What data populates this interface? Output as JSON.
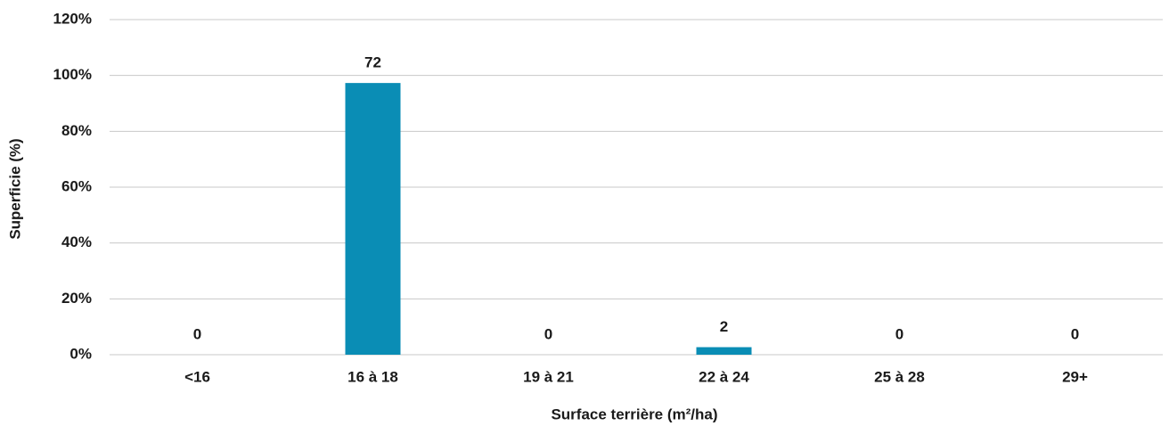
{
  "chart_data": {
    "type": "bar",
    "x_label": "Surface terrière (m²/ha)",
    "y_label": "Superficie (%)",
    "categories": [
      "<16",
      "16 à 18",
      "19 à 21",
      "22 à 24",
      "25 à 28",
      "29+"
    ],
    "values": [
      0,
      97.3,
      0,
      2.7,
      0,
      0
    ],
    "counts": [
      0,
      72,
      0,
      2,
      0,
      0
    ],
    "color": "#0a8db5",
    "ylim": [
      0,
      120
    ],
    "yticks": [
      {
        "value": 0,
        "label": "0%"
      },
      {
        "value": 20,
        "label": "20%"
      },
      {
        "value": 40,
        "label": "40%"
      },
      {
        "value": 60,
        "label": "60%"
      },
      {
        "value": 80,
        "label": "80%"
      },
      {
        "value": 100,
        "label": "100%"
      },
      {
        "value": 120,
        "label": "120%"
      }
    ],
    "grid": true
  }
}
